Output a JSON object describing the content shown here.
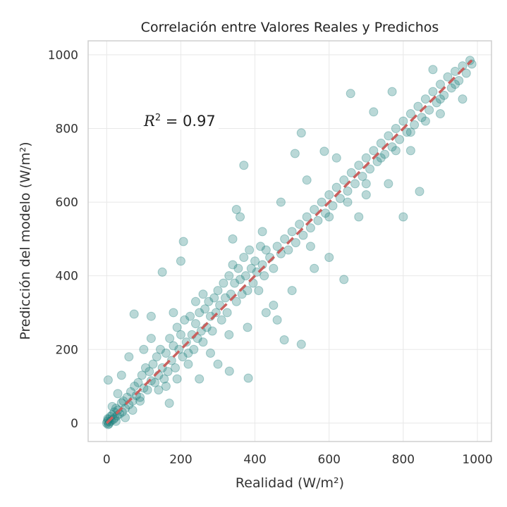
{
  "chart_data": {
    "type": "scatter",
    "title": "Correlación entre Valores Reales y Predichos",
    "xlabel": "Realidad (W/m²)",
    "ylabel": "Predicción del modelo (W/m²)",
    "xlim": [
      -50,
      1038
    ],
    "ylim": [
      -50,
      1038
    ],
    "xticks": [
      0,
      200,
      400,
      600,
      800,
      1000
    ],
    "yticks": [
      0,
      200,
      400,
      600,
      800,
      1000
    ],
    "grid": true,
    "annotation": {
      "label": "R² = 0.97",
      "var": "R",
      "sup": "2",
      "rest": " = 0.97"
    },
    "reference_line": {
      "from": [
        0,
        0
      ],
      "to": [
        985,
        985
      ],
      "style": "dashed",
      "color": "#c9605e"
    },
    "point_color": "#1a7f7a",
    "point_alpha": 0.3,
    "points": [
      [
        0,
        0
      ],
      [
        2,
        5
      ],
      [
        4,
        -4
      ],
      [
        5,
        10
      ],
      [
        8,
        3
      ],
      [
        10,
        18
      ],
      [
        12,
        6
      ],
      [
        15,
        22
      ],
      [
        3,
        12
      ],
      [
        6,
        -2
      ],
      [
        18,
        10
      ],
      [
        20,
        30
      ],
      [
        22,
        14
      ],
      [
        25,
        40
      ],
      [
        28,
        20
      ],
      [
        30,
        35
      ],
      [
        35,
        25
      ],
      [
        40,
        55
      ],
      [
        42,
        30
      ],
      [
        45,
        60
      ],
      [
        50,
        40
      ],
      [
        55,
        70
      ],
      [
        60,
        50
      ],
      [
        65,
        85
      ],
      [
        70,
        60
      ],
      [
        75,
        100
      ],
      [
        80,
        75
      ],
      [
        85,
        110
      ],
      [
        90,
        70
      ],
      [
        95,
        130
      ],
      [
        100,
        95
      ],
      [
        105,
        150
      ],
      [
        110,
        90
      ],
      [
        115,
        140
      ],
      [
        120,
        115
      ],
      [
        125,
        160
      ],
      [
        130,
        110
      ],
      [
        135,
        180
      ],
      [
        140,
        130
      ],
      [
        145,
        200
      ],
      [
        150,
        150
      ],
      [
        155,
        120
      ],
      [
        160,
        190
      ],
      [
        165,
        140
      ],
      [
        170,
        230
      ],
      [
        175,
        170
      ],
      [
        180,
        210
      ],
      [
        185,
        150
      ],
      [
        190,
        260
      ],
      [
        195,
        200
      ],
      [
        200,
        240
      ],
      [
        205,
        180
      ],
      [
        210,
        280
      ],
      [
        215,
        220
      ],
      [
        220,
        190
      ],
      [
        225,
        290
      ],
      [
        230,
        240
      ],
      [
        235,
        200
      ],
      [
        240,
        270
      ],
      [
        245,
        230
      ],
      [
        250,
        300
      ],
      [
        255,
        250
      ],
      [
        260,
        220
      ],
      [
        265,
        310
      ],
      [
        270,
        260
      ],
      [
        275,
        330
      ],
      [
        280,
        290
      ],
      [
        285,
        250
      ],
      [
        290,
        340
      ],
      [
        295,
        300
      ],
      [
        300,
        360
      ],
      [
        305,
        320
      ],
      [
        310,
        280
      ],
      [
        315,
        380
      ],
      [
        320,
        340
      ],
      [
        325,
        300
      ],
      [
        330,
        400
      ],
      [
        335,
        350
      ],
      [
        340,
        430
      ],
      [
        345,
        380
      ],
      [
        350,
        330
      ],
      [
        355,
        420
      ],
      [
        360,
        390
      ],
      [
        365,
        350
      ],
      [
        370,
        450
      ],
      [
        375,
        400
      ],
      [
        380,
        360
      ],
      [
        385,
        470
      ],
      [
        390,
        420
      ],
      [
        395,
        380
      ],
      [
        400,
        440
      ],
      [
        405,
        410
      ],
      [
        410,
        360
      ],
      [
        415,
        480
      ],
      [
        420,
        430
      ],
      [
        425,
        400
      ],
      [
        430,
        470
      ],
      [
        440,
        450
      ],
      [
        450,
        420
      ],
      [
        460,
        480
      ],
      [
        470,
        460
      ],
      [
        480,
        500
      ],
      [
        490,
        470
      ],
      [
        500,
        520
      ],
      [
        510,
        490
      ],
      [
        520,
        540
      ],
      [
        530,
        510
      ],
      [
        540,
        560
      ],
      [
        550,
        530
      ],
      [
        560,
        580
      ],
      [
        570,
        550
      ],
      [
        580,
        600
      ],
      [
        590,
        570
      ],
      [
        600,
        620
      ],
      [
        610,
        590
      ],
      [
        620,
        640
      ],
      [
        630,
        610
      ],
      [
        640,
        660
      ],
      [
        650,
        630
      ],
      [
        660,
        680
      ],
      [
        670,
        650
      ],
      [
        680,
        700
      ],
      [
        690,
        670
      ],
      [
        700,
        720
      ],
      [
        710,
        690
      ],
      [
        720,
        740
      ],
      [
        730,
        710
      ],
      [
        740,
        760
      ],
      [
        750,
        730
      ],
      [
        760,
        780
      ],
      [
        770,
        750
      ],
      [
        780,
        800
      ],
      [
        790,
        770
      ],
      [
        800,
        820
      ],
      [
        810,
        790
      ],
      [
        820,
        840
      ],
      [
        830,
        810
      ],
      [
        840,
        860
      ],
      [
        850,
        830
      ],
      [
        860,
        880
      ],
      [
        870,
        850
      ],
      [
        880,
        900
      ],
      [
        890,
        870
      ],
      [
        900,
        920
      ],
      [
        910,
        890
      ],
      [
        920,
        940
      ],
      [
        930,
        910
      ],
      [
        940,
        955
      ],
      [
        950,
        930
      ],
      [
        960,
        970
      ],
      [
        970,
        950
      ],
      [
        980,
        985
      ],
      [
        985,
        975
      ],
      [
        658,
        895
      ],
      [
        370,
        700
      ],
      [
        800,
        560
      ],
      [
        844,
        629
      ],
      [
        640,
        390
      ],
      [
        525,
        214
      ],
      [
        382,
        122
      ],
      [
        207,
        493
      ],
      [
        74,
        296
      ],
      [
        4,
        117
      ],
      [
        169,
        54
      ],
      [
        479,
        226
      ],
      [
        331,
        141
      ],
      [
        525,
        788
      ],
      [
        508,
        732
      ],
      [
        587,
        738
      ],
      [
        770,
        900
      ],
      [
        880,
        960
      ],
      [
        960,
        880
      ],
      [
        720,
        845
      ],
      [
        200,
        440
      ],
      [
        150,
        410
      ],
      [
        120,
        290
      ],
      [
        250,
        120
      ],
      [
        300,
        160
      ],
      [
        450,
        320
      ],
      [
        460,
        280
      ],
      [
        560,
        420
      ],
      [
        600,
        450
      ],
      [
        680,
        560
      ],
      [
        700,
        620
      ],
      [
        760,
        650
      ],
      [
        820,
        740
      ],
      [
        900,
        840
      ],
      [
        420,
        520
      ],
      [
        360,
        560
      ],
      [
        350,
        580
      ],
      [
        470,
        600
      ],
      [
        540,
        660
      ],
      [
        620,
        720
      ],
      [
        120,
        230
      ],
      [
        60,
        180
      ],
      [
        40,
        130
      ],
      [
        30,
        80
      ],
      [
        90,
        60
      ],
      [
        160,
        100
      ],
      [
        220,
        160
      ],
      [
        280,
        190
      ],
      [
        330,
        240
      ],
      [
        380,
        260
      ],
      [
        430,
        300
      ],
      [
        500,
        360
      ],
      [
        550,
        480
      ],
      [
        600,
        560
      ],
      [
        650,
        600
      ],
      [
        700,
        650
      ],
      [
        740,
        720
      ],
      [
        780,
        740
      ],
      [
        820,
        790
      ],
      [
        860,
        820
      ],
      [
        900,
        880
      ],
      [
        940,
        920
      ],
      [
        340,
        500
      ],
      [
        260,
        350
      ],
      [
        180,
        300
      ],
      [
        240,
        330
      ],
      [
        100,
        200
      ],
      [
        15,
        45
      ],
      [
        25,
        5
      ],
      [
        50,
        15
      ],
      [
        70,
        35
      ],
      [
        140,
        90
      ],
      [
        190,
        120
      ]
    ]
  }
}
